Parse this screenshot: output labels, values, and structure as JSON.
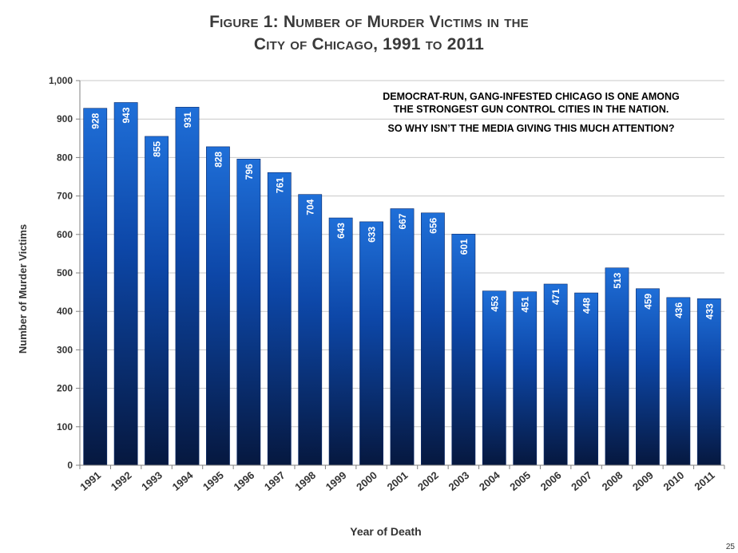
{
  "chart_data": {
    "type": "bar",
    "title_lines": [
      "Figure 1: Number of Murder Victims in the",
      "City of Chicago, 1991 to 2011"
    ],
    "xlabel": "Year of Death",
    "ylabel": "Number of Murder Victims",
    "ylim": [
      0,
      1000
    ],
    "yticks": [
      0,
      100,
      200,
      300,
      400,
      500,
      600,
      700,
      800,
      900,
      1000
    ],
    "ytick_labels": [
      "0",
      "100",
      "200",
      "300",
      "400",
      "500",
      "600",
      "700",
      "800",
      "900",
      "1,000"
    ],
    "grid": true,
    "legend": "none",
    "bar_color_top": "#1f6fd8",
    "bar_color_bottom": "#06183f",
    "categories": [
      "1991",
      "1992",
      "1993",
      "1994",
      "1995",
      "1996",
      "1997",
      "1998",
      "1999",
      "2000",
      "2001",
      "2002",
      "2003",
      "2004",
      "2005",
      "2006",
      "2007",
      "2008",
      "2009",
      "2010",
      "2011"
    ],
    "values": [
      928,
      943,
      855,
      931,
      828,
      796,
      761,
      704,
      643,
      633,
      667,
      656,
      601,
      453,
      451,
      471,
      448,
      513,
      459,
      436,
      433
    ],
    "data_labels": [
      "928",
      "943",
      "855",
      "931",
      "828",
      "796",
      "761",
      "704",
      "643",
      "633",
      "667",
      "656",
      "601",
      "453",
      "451",
      "471",
      "448",
      "513",
      "459",
      "436",
      "433"
    ]
  },
  "annotation": {
    "line1": "DEMOCRAT-RUN, GANG-INFESTED CHICAGO IS ONE AMONG",
    "line2": "THE STRONGEST GUN CONTROL CITIES IN THE NATION.",
    "line3": "SO WHY ISN’T THE MEDIA GIVING THIS MUCH ATTENTION?"
  },
  "page_number": "25"
}
